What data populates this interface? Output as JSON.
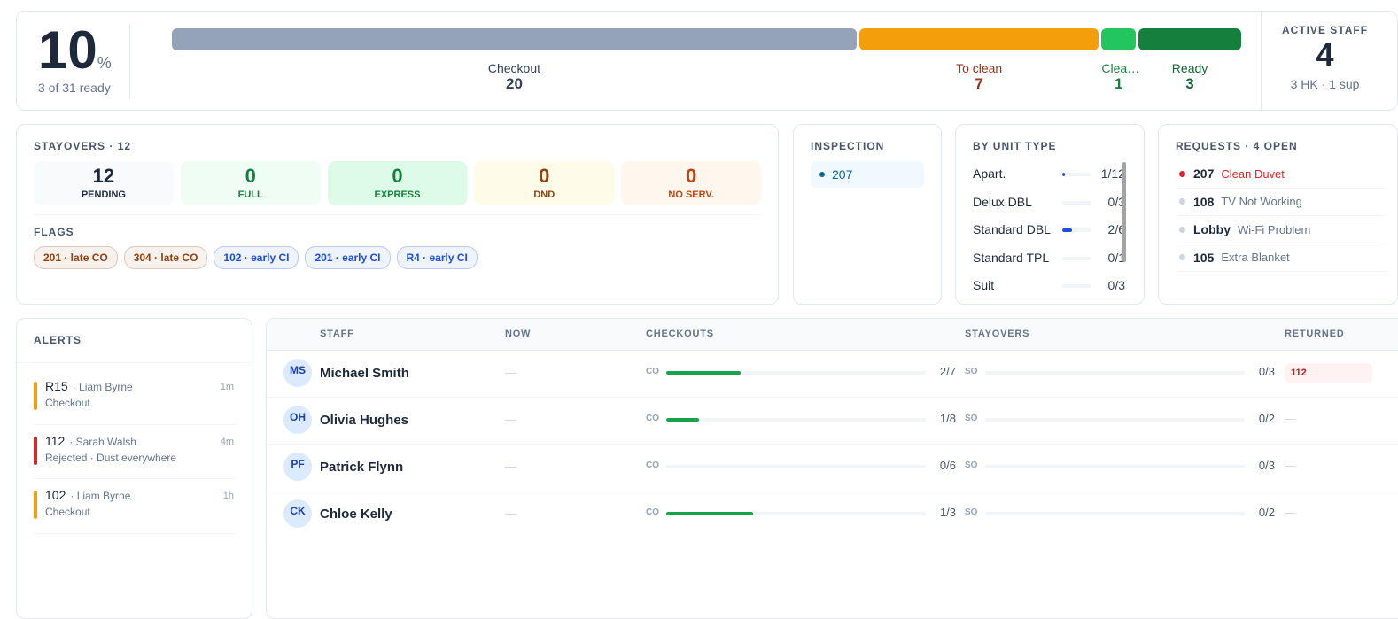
{
  "summary": {
    "percent": 10,
    "unit": "%",
    "caption": "3 of 31 ready"
  },
  "status": {
    "segments": [
      {
        "label": "Checkout",
        "count": 20,
        "color": "#94a3b8",
        "text_color": "#334155"
      },
      {
        "label": "To clean",
        "count": 7,
        "color": "#f59e0b",
        "text_color": "#9a3412"
      },
      {
        "label": "Clea…",
        "count": 1,
        "color": "#22c55e",
        "text_color": "#15803d"
      },
      {
        "label": "Ready",
        "count": 3,
        "color": "#15803d",
        "text_color": "#166534"
      }
    ]
  },
  "active_staff": {
    "title": "ACTIVE STAFF",
    "count": 4,
    "detail": "3 HK · 1 sup"
  },
  "stayovers": {
    "title": "STAYOVERS · 12",
    "tiles": [
      {
        "value": 12,
        "label": "PENDING",
        "color": "#1e293b",
        "background": "#f8fafc"
      },
      {
        "value": 0,
        "label": "FULL",
        "color": "#15803d",
        "background": "#f0fdf4"
      },
      {
        "value": 0,
        "label": "EXPRESS",
        "color": "#15803d",
        "background": "#dcfce7"
      },
      {
        "value": 0,
        "label": "DND",
        "color": "#92400e",
        "background": "#fefce8"
      },
      {
        "value": 0,
        "label": "NO SERV.",
        "color": "#c2410c",
        "background": "#fff7ed"
      }
    ],
    "flags_title": "FLAGS",
    "flags": [
      {
        "text": "201 · late CO",
        "color": "#92400e"
      },
      {
        "text": "304 · late CO",
        "color": "#92400e"
      },
      {
        "text": "102 · early CI",
        "color": "#1d4ed8"
      },
      {
        "text": "201 · early CI",
        "color": "#1d4ed8"
      },
      {
        "text": "R4 · early CI",
        "color": "#1d4ed8"
      }
    ]
  },
  "inspection": {
    "title": "INSPECTION",
    "rooms": [
      "207"
    ]
  },
  "unit_types": {
    "title": "BY UNIT TYPE",
    "color": "#1d4ed8",
    "rows": [
      {
        "name": "Apart.",
        "value": 1,
        "max": 12,
        "label": "1/12"
      },
      {
        "name": "Delux DBL",
        "value": 0,
        "max": 3,
        "label": "0/3"
      },
      {
        "name": "Standard DBL",
        "value": 2,
        "max": 6,
        "label": "2/6"
      },
      {
        "name": "Standard TPL",
        "value": 0,
        "max": 1,
        "label": "0/1"
      },
      {
        "name": "Suit",
        "value": 0,
        "max": 3,
        "label": "0/3"
      }
    ]
  },
  "requests": {
    "title": "REQUESTS · 4 OPEN",
    "items": [
      {
        "room": "207",
        "text": "Clean Duvet",
        "color": "#dc2626",
        "text_color": "#dc2626"
      },
      {
        "room": "108",
        "text": "TV Not Working",
        "color": "#cbd5e1",
        "text_color": "#64748b"
      },
      {
        "room": "Lobby",
        "text": "Wi-Fi Problem",
        "color": "#cbd5e1",
        "text_color": "#64748b"
      },
      {
        "room": "105",
        "text": "Extra Blanket",
        "color": "#cbd5e1",
        "text_color": "#64748b"
      }
    ]
  },
  "alerts": {
    "title": "ALERTS",
    "items": [
      {
        "room": "R15",
        "staff": "· Liam Byrne",
        "time": "1m",
        "detail": "Checkout",
        "color": "#f59e0b"
      },
      {
        "room": "112",
        "staff": "· Sarah Walsh",
        "time": "4m",
        "detail": "Rejected · Dust everywhere",
        "color": "#dc2626"
      },
      {
        "room": "102",
        "staff": "· Liam Byrne",
        "time": "1h",
        "detail": "Checkout",
        "color": "#f59e0b"
      }
    ]
  },
  "staff": {
    "headers": [
      "STAFF",
      "NOW",
      "CHECKOUTS",
      "STAYOVERS",
      "RETURNED"
    ],
    "co_tag": "CO",
    "so_tag": "SO",
    "color": "#16a34a",
    "rows": [
      {
        "initials": "MS",
        "name": "Michael Smith",
        "now": "—",
        "checkouts": 2,
        "checkouts_total": 7,
        "checkouts_label": "2/7",
        "stayovers": 0,
        "stayovers_total": 3,
        "stayovers_label": "0/3",
        "returned": {
          "text": "112",
          "color": "#b91c1c"
        }
      },
      {
        "initials": "OH",
        "name": "Olivia Hughes",
        "now": "—",
        "checkouts": 1,
        "checkouts_total": 8,
        "checkouts_label": "1/8",
        "stayovers": 0,
        "stayovers_total": 2,
        "stayovers_label": "0/2",
        "returned": {
          "text": "—"
        }
      },
      {
        "initials": "PF",
        "name": "Patrick Flynn",
        "now": "—",
        "checkouts": 0,
        "checkouts_total": 6,
        "checkouts_label": "0/6",
        "stayovers": 0,
        "stayovers_total": 3,
        "stayovers_label": "0/3",
        "returned": {
          "text": "—"
        }
      },
      {
        "initials": "CK",
        "name": "Chloe Kelly",
        "now": "—",
        "checkouts": 1,
        "checkouts_total": 3,
        "checkouts_label": "1/3",
        "stayovers": 0,
        "stayovers_total": 2,
        "stayovers_label": "0/2",
        "returned": {
          "text": "—"
        }
      }
    ]
  }
}
